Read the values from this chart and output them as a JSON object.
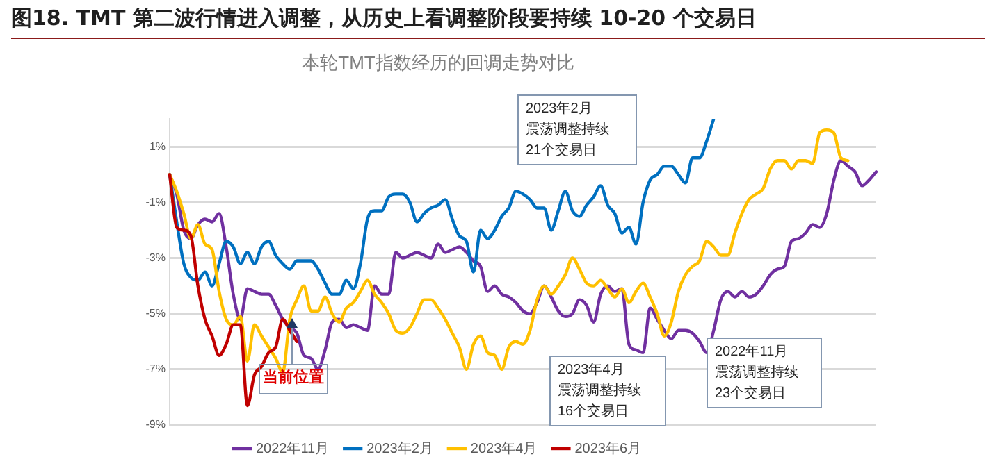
{
  "chart_data": {
    "type": "line",
    "title": "图18. TMT 第二波行情进入调整，从历史上看调整阶段要持续 10-20 个交易日",
    "subtitle": "本轮TMT指数经历的回调走势对比",
    "categories": [
      null,
      null,
      null,
      null,
      null,
      null,
      null,
      null,
      null,
      null,
      null,
      null,
      null,
      null,
      null,
      null,
      null,
      null,
      null,
      null,
      null,
      null,
      null,
      null,
      null,
      null,
      null,
      null,
      null,
      null,
      null,
      null,
      null,
      null,
      null,
      null,
      null,
      null,
      null,
      null,
      null,
      null,
      null,
      null,
      null,
      null,
      null,
      null,
      null,
      null,
      null,
      null,
      null,
      null,
      null,
      null,
      null,
      null,
      null,
      null,
      null,
      null,
      null,
      null,
      null,
      null,
      null,
      null,
      null,
      null,
      null,
      null,
      null,
      null,
      null,
      null,
      null,
      null,
      null,
      null,
      null,
      null,
      null,
      null,
      null,
      null,
      null,
      null,
      null,
      null,
      null,
      null,
      null,
      null,
      null,
      null,
      null,
      null,
      null,
      null,
      null
    ],
    "series": [
      {
        "name": "2022年11月",
        "color": "#7030a0",
        "values": [
          0,
          -0.7,
          -2.0,
          -2.3,
          -1.8,
          -1.6,
          -1.7,
          -1.4,
          -2.6,
          -4.3,
          -5.2,
          -4.1,
          -4.2,
          -4.3,
          -4.3,
          -4.7,
          -5.2,
          -5.5,
          -5.7,
          -6.5,
          -6.6,
          -7.0,
          -6.3,
          -5.3,
          -5.2,
          -5.5,
          -5.4,
          -5.5,
          -5.6,
          -4.0,
          -4.3,
          -4.3,
          -2.8,
          -3.0,
          -2.9,
          -2.8,
          -2.9,
          -3.0,
          -2.5,
          -2.8,
          -2.7,
          -2.6,
          -2.8,
          -3.1,
          -3.3,
          -4.2,
          -4.0,
          -4.3,
          -4.4,
          -4.6,
          -4.9,
          -5.0,
          -4.6,
          -4.0,
          -4.4,
          -4.9,
          -5.1,
          -5.0,
          -4.5,
          -4.7,
          -5.3,
          -4.3,
          -4.0,
          -4.2,
          -4.1,
          -6.1,
          -6.3,
          -6.4,
          -4.8,
          -5.2,
          -5.6,
          -5.9,
          -5.6,
          -5.6,
          -5.7,
          -6.0,
          -6.4,
          -5.6,
          -4.5,
          -4.2,
          -4.4,
          -4.2,
          -4.4,
          -4.3,
          -4.0,
          -3.6,
          -3.4,
          -3.3,
          -2.4,
          -2.3,
          -2.1,
          -1.8,
          -1.9,
          -1.4,
          -0.2,
          0.5,
          0.3,
          0.1,
          -0.4,
          -0.2,
          0.1
        ]
      },
      {
        "name": "2023年2月",
        "color": "#0070c0",
        "values": [
          0,
          -1.7,
          -3.2,
          -3.7,
          -3.8,
          -3.5,
          -4.0,
          -3.2,
          -2.4,
          -2.6,
          -3.2,
          -2.8,
          -3.2,
          -2.6,
          -2.4,
          -2.9,
          -3.2,
          -3.4,
          -3.1,
          -3.1,
          -3.1,
          -3.4,
          -3.9,
          -4.3,
          -4.3,
          -3.8,
          -4.1,
          -3.2,
          -1.6,
          -1.3,
          -1.3,
          -0.8,
          -0.7,
          -0.7,
          -1.0,
          -1.7,
          -1.4,
          -1.2,
          -1.1,
          -0.9,
          -1.6,
          -2.2,
          -2.4,
          -3.5,
          -2.0,
          -2.3,
          -2.0,
          -1.5,
          -1.2,
          -0.6,
          -0.7,
          -0.9,
          -1.2,
          -1.2,
          -2.0,
          -1.3,
          -0.6,
          -1.3,
          -1.5,
          -1.1,
          -0.8,
          -0.4,
          -1.1,
          -1.4,
          -2.1,
          -1.9,
          -2.5,
          -1.0,
          -0.2,
          0.0,
          0.3,
          0.3,
          0.0,
          -0.3,
          0.6,
          0.6,
          1.2,
          2.0,
          null,
          null,
          null,
          null,
          null,
          null,
          null,
          null,
          null,
          null,
          null,
          null,
          null,
          null,
          null,
          null,
          null,
          null,
          null,
          null,
          null,
          null,
          null
        ]
      },
      {
        "name": "2023年4月",
        "color": "#ffc000",
        "values": [
          0,
          -0.6,
          -1.4,
          -2.3,
          -1.8,
          -2.5,
          -2.7,
          -4.2,
          -5.2,
          -5.4,
          -5.1,
          -6.7,
          -5.4,
          -5.8,
          -6.2,
          -6.6,
          -7.1,
          -5.2,
          -4.5,
          -4.0,
          -4.9,
          -4.9,
          -4.4,
          -5.0,
          -5.3,
          -4.8,
          -4.6,
          -4.2,
          -3.8,
          -4.3,
          -4.6,
          -5.0,
          -5.6,
          -5.7,
          -5.5,
          -5.0,
          -4.5,
          -4.5,
          -4.8,
          -5.2,
          -5.7,
          -6.2,
          -7.0,
          -6.1,
          -5.8,
          -6.4,
          -6.5,
          -7.0,
          -6.2,
          -6.0,
          -6.1,
          -5.6,
          -4.5,
          -4.0,
          -4.3,
          -4.0,
          -3.6,
          -3.0,
          -3.4,
          -3.9,
          -4.0,
          -3.8,
          -4.1,
          -4.4,
          -4.1,
          -4.6,
          -4.2,
          -3.9,
          -4.4,
          -5.0,
          -5.8,
          -5.3,
          -4.2,
          -3.6,
          -3.3,
          -3.1,
          -2.4,
          -2.6,
          -2.9,
          -2.9,
          -2.1,
          -1.4,
          -0.9,
          -0.7,
          -0.5,
          0.2,
          0.5,
          0.5,
          0.2,
          0.5,
          0.5,
          0.4,
          1.5,
          1.6,
          1.5,
          0.6,
          0.5,
          null,
          null,
          null,
          null
        ]
      },
      {
        "name": "2023年6月",
        "color": "#c00000",
        "values": [
          0,
          -1.9,
          -2.0,
          -2.2,
          -4.0,
          -5.2,
          -5.8,
          -6.5,
          -6.1,
          -5.4,
          -5.4,
          -8.3,
          -7.2,
          -6.9,
          -6.4,
          -6.2,
          -5.2,
          -5.6,
          -6.0,
          null,
          null,
          null,
          null,
          null,
          null,
          null,
          null,
          null,
          null,
          null,
          null,
          null,
          null,
          null,
          null,
          null,
          null,
          null,
          null,
          null,
          null,
          null,
          null,
          null,
          null,
          null,
          null,
          null,
          null,
          null,
          null,
          null,
          null,
          null,
          null,
          null,
          null,
          null,
          null,
          null,
          null,
          null,
          null,
          null,
          null,
          null,
          null,
          null,
          null,
          null,
          null,
          null,
          null,
          null,
          null,
          null,
          null,
          null,
          null,
          null,
          null,
          null,
          null,
          null,
          null,
          null,
          null,
          null,
          null,
          null,
          null,
          null,
          null,
          null,
          null,
          null,
          null,
          null,
          null,
          null,
          null
        ]
      }
    ],
    "ylim": [
      -9,
      2
    ],
    "yticks": [
      {
        "value": 1,
        "label": "1%"
      },
      {
        "value": -1,
        "label": "-1%"
      },
      {
        "value": -3,
        "label": "-3%"
      },
      {
        "value": -5,
        "label": "-5%"
      },
      {
        "value": -7,
        "label": "-7%"
      },
      {
        "value": -9,
        "label": "-9%"
      }
    ],
    "grid": "y",
    "legend": "bottom",
    "marker": "none",
    "line_style": "solid",
    "annotations": [
      "2023年2月",
      "震荡调整持续",
      "21个交易日",
      "2023年4月",
      "震荡调整持续",
      "16个交易日",
      "2022年11月",
      "震荡调整持续",
      "23个交易日",
      "当前位置"
    ]
  }
}
